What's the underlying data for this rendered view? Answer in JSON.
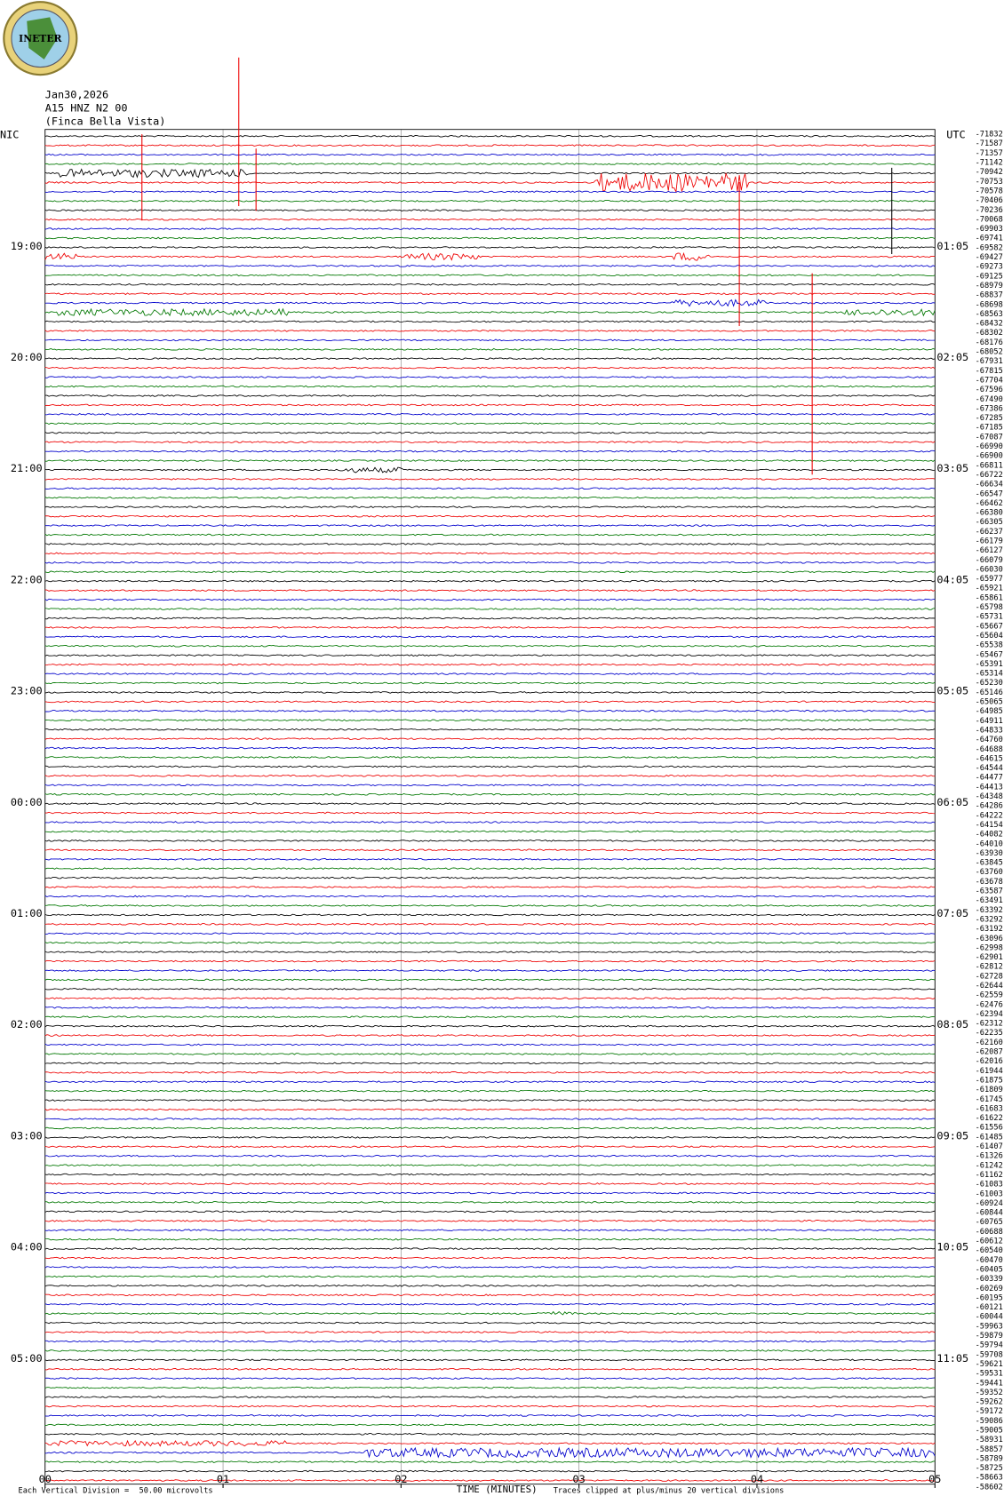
{
  "logo": "INETER",
  "header": {
    "date": "Jan30,2026",
    "station": "A15 HNZ N2 00",
    "location": "(Finca Bella Vista)"
  },
  "left_labels": {
    "header": "NIC",
    "hours": [
      "19:00",
      "20:00",
      "21:00",
      "22:00",
      "23:00",
      "00:00",
      "01:00",
      "02:00",
      "03:00",
      "04:00",
      "05:00"
    ]
  },
  "right_labels": {
    "header": "UTC",
    "hours": [
      "01:05",
      "02:05",
      "03:05",
      "04:05",
      "05:05",
      "06:05",
      "07:05",
      "08:05",
      "09:05",
      "10:05",
      "11:05"
    ]
  },
  "offsets": [
    -71832,
    -71587,
    -71357,
    -71142,
    -70942,
    -70753,
    -70578,
    -70406,
    -70236,
    -70068,
    -69903,
    -69741,
    -69582,
    -69427,
    -69273,
    -69125,
    -68979,
    -68837,
    -68698,
    -68563,
    -68432,
    -68302,
    -68176,
    -68052,
    -67931,
    -67815,
    -67704,
    -67596,
    -67490,
    -67386,
    -67285,
    -67185,
    -67087,
    -66990,
    -66900,
    -66811,
    -66722,
    -66634,
    -66547,
    -66462,
    -66380,
    -66305,
    -66237,
    -66179,
    -66127,
    -66079,
    -66030,
    -65977,
    -65921,
    -65861,
    -65798,
    -65731,
    -65667,
    -65604,
    -65538,
    -65467,
    -65391,
    -65314,
    -65230,
    -65146,
    -65065,
    -64985,
    -64911,
    -64833,
    -64760,
    -64688,
    -64615,
    -64544,
    -64477,
    -64413,
    -64348,
    -64286,
    -64222,
    -64154,
    -64082,
    -64010,
    -63930,
    -63845,
    -63760,
    -63678,
    -63587,
    -63491,
    -63392,
    -63292,
    -63192,
    -63096,
    -62998,
    -62901,
    -62812,
    -62728,
    -62644,
    -62559,
    -62476,
    -62394,
    -62312,
    -62235,
    -62160,
    -62087,
    -62016,
    -61944,
    -61875,
    -61809,
    -61745,
    -61683,
    -61622,
    -61556,
    -61485,
    -61407,
    -61326,
    -61242,
    -61162,
    -61083,
    -61003,
    -60924,
    -60844,
    -60765,
    -60688,
    -60612,
    -60540,
    -60470,
    -60405,
    -60339,
    -60269,
    -60195,
    -60121,
    -60044,
    -59963,
    -59879,
    -59794,
    -59708,
    -59621,
    -59531,
    -59441,
    -59352,
    -59262,
    -59172,
    -59086,
    -59005,
    -58931,
    -58857,
    -58789,
    -58725,
    -58663,
    -58602
  ],
  "x_axis": {
    "ticks": [
      "00",
      "01",
      "02",
      "03",
      "04",
      "05"
    ],
    "title": "TIME (MINUTES)"
  },
  "footer": {
    "scale_label": "Each Vertical Division =",
    "scale_value": "50.00 microvolts",
    "clip_note": "Traces clipped at plus/minus 20 vertical divisions"
  }
}
